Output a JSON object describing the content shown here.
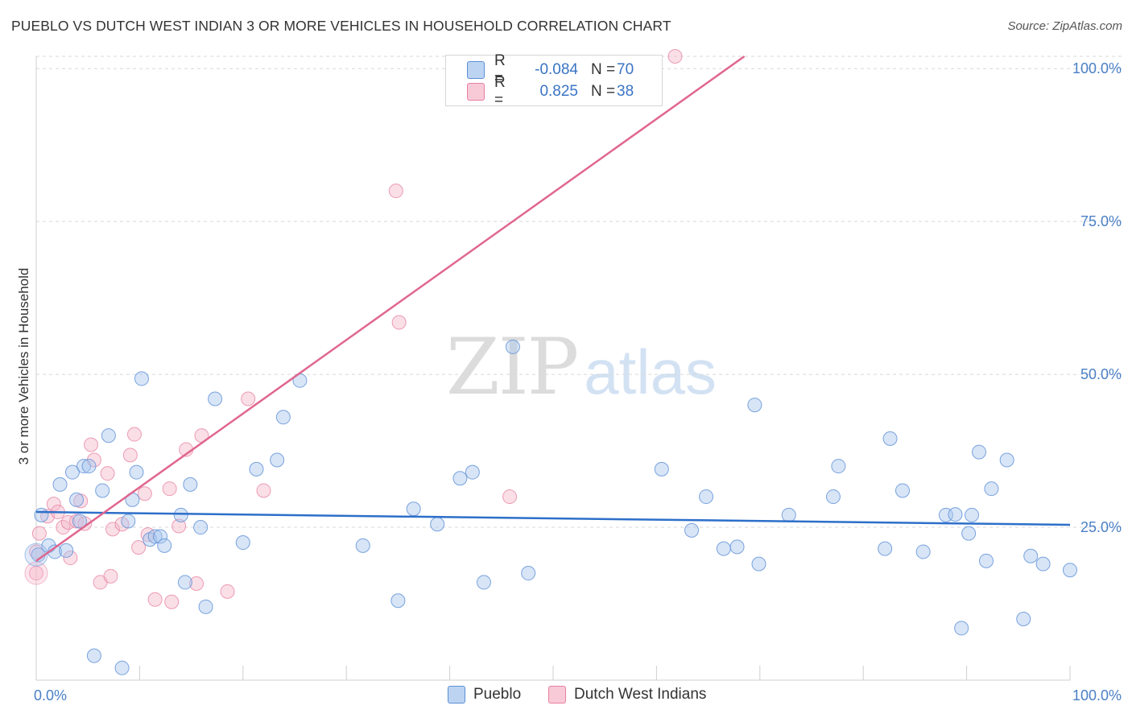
{
  "header": {
    "title": "PUEBLO VS DUTCH WEST INDIAN 3 OR MORE VEHICLES IN HOUSEHOLD CORRELATION CHART",
    "source": "Source: ZipAtlas.com"
  },
  "watermark": {
    "zip": "ZIP",
    "atlas": "atlas"
  },
  "legend": {
    "rows": [
      {
        "r_label": "R =",
        "r_value": "-0.084",
        "n_label": "N =",
        "n_value": "70"
      },
      {
        "r_label": "R =",
        "r_value": "0.825",
        "n_label": "N =",
        "n_value": "38"
      }
    ]
  },
  "bottom_legend": {
    "items": [
      "Pueblo",
      "Dutch West Indians"
    ]
  },
  "colors": {
    "pueblo_fill": "#a8c6ee",
    "pueblo_stroke": "#5b8fd6",
    "pueblo_line": "#2d6fc9",
    "dutch_fill": "#f5b8ca",
    "dutch_stroke": "#e77fa0",
    "dutch_line": "#e0668f",
    "tick_text": "#4a7fc6",
    "grid": "#d8d8d8"
  },
  "chart_data": {
    "type": "scatter",
    "title": "PUEBLO VS DUTCH WEST INDIAN 3 OR MORE VEHICLES IN HOUSEHOLD CORRELATION CHART",
    "xlabel": "",
    "ylabel": "3 or more Vehicles in Household",
    "xlim": [
      0,
      100
    ],
    "ylim": [
      0,
      102
    ],
    "x_tick_labels": [
      "0.0%",
      "100.0%"
    ],
    "y_ticks": [
      25,
      50,
      75,
      100
    ],
    "y_tick_labels": [
      "25.0%",
      "50.0%",
      "75.0%",
      "100.0%"
    ],
    "grid": true,
    "legend_position": "top-center",
    "series": [
      {
        "name": "Pueblo",
        "r": -0.084,
        "n": 70,
        "trend": {
          "x": [
            0,
            100
          ],
          "y": [
            27.5,
            25.4
          ]
        },
        "points": [
          [
            0.2,
            20.5
          ],
          [
            0.5,
            27
          ],
          [
            1.2,
            22
          ],
          [
            1.8,
            21
          ],
          [
            2.3,
            32
          ],
          [
            2.9,
            21.2
          ],
          [
            3.5,
            34
          ],
          [
            3.9,
            29.5
          ],
          [
            4.2,
            26
          ],
          [
            4.6,
            35
          ],
          [
            5.1,
            35
          ],
          [
            5.6,
            4
          ],
          [
            6.4,
            31
          ],
          [
            7,
            40
          ],
          [
            8.3,
            2
          ],
          [
            8.9,
            26
          ],
          [
            9.3,
            29.5
          ],
          [
            9.7,
            34
          ],
          [
            10.2,
            49.3
          ],
          [
            11,
            23
          ],
          [
            11.5,
            23.5
          ],
          [
            12,
            23.5
          ],
          [
            12.4,
            22
          ],
          [
            14,
            27
          ],
          [
            14.4,
            16
          ],
          [
            14.9,
            32
          ],
          [
            15.9,
            25
          ],
          [
            16.4,
            12
          ],
          [
            17.3,
            46
          ],
          [
            20,
            22.5
          ],
          [
            21.3,
            34.5
          ],
          [
            23.3,
            36
          ],
          [
            23.9,
            43
          ],
          [
            25.5,
            49
          ],
          [
            31.6,
            22
          ],
          [
            35,
            13
          ],
          [
            36.5,
            28
          ],
          [
            38.8,
            25.5
          ],
          [
            41,
            33
          ],
          [
            42.2,
            34
          ],
          [
            43.3,
            16
          ],
          [
            46.1,
            54.5
          ],
          [
            47.6,
            17.5
          ],
          [
            60.5,
            34.5
          ],
          [
            63.4,
            24.5
          ],
          [
            64.8,
            30
          ],
          [
            66.5,
            21.5
          ],
          [
            67.8,
            21.8
          ],
          [
            69.5,
            45
          ],
          [
            69.9,
            19
          ],
          [
            72.8,
            27
          ],
          [
            77.1,
            30
          ],
          [
            77.6,
            35
          ],
          [
            82.1,
            21.5
          ],
          [
            82.6,
            39.5
          ],
          [
            83.8,
            31
          ],
          [
            85.8,
            21
          ],
          [
            88,
            27
          ],
          [
            88.9,
            27.1
          ],
          [
            89.5,
            8.5
          ],
          [
            90.2,
            24
          ],
          [
            90.5,
            27
          ],
          [
            91.2,
            37.3
          ],
          [
            91.9,
            19.5
          ],
          [
            92.4,
            31.3
          ],
          [
            93.9,
            36
          ],
          [
            95.5,
            10
          ],
          [
            96.2,
            20.3
          ],
          [
            97.4,
            19
          ],
          [
            100,
            18
          ]
        ]
      },
      {
        "name": "Dutch West Indians",
        "r": 0.825,
        "n": 38,
        "trend": {
          "x": [
            0,
            68.5
          ],
          "y": [
            19.5,
            102
          ]
        },
        "points": [
          [
            0,
            17.5
          ],
          [
            0,
            21
          ],
          [
            0.3,
            24
          ],
          [
            1.1,
            26.8
          ],
          [
            1.7,
            28.8
          ],
          [
            2.1,
            27.5
          ],
          [
            2.6,
            25
          ],
          [
            3.1,
            25.8
          ],
          [
            3.3,
            20
          ],
          [
            3.9,
            26
          ],
          [
            4.3,
            29.3
          ],
          [
            4.7,
            25.6
          ],
          [
            5.3,
            38.5
          ],
          [
            5.6,
            36
          ],
          [
            6.2,
            16
          ],
          [
            6.9,
            33.8
          ],
          [
            7.2,
            17
          ],
          [
            7.4,
            24.7
          ],
          [
            8.3,
            25.5
          ],
          [
            9.1,
            36.8
          ],
          [
            9.5,
            40.2
          ],
          [
            9.9,
            21.7
          ],
          [
            10.5,
            30.5
          ],
          [
            10.8,
            23.8
          ],
          [
            11.5,
            13.2
          ],
          [
            12.9,
            31.3
          ],
          [
            13.1,
            12.8
          ],
          [
            13.8,
            25.2
          ],
          [
            14.5,
            37.7
          ],
          [
            15.5,
            15.8
          ],
          [
            16,
            40
          ],
          [
            18.5,
            14.5
          ],
          [
            20.5,
            46
          ],
          [
            22,
            31
          ],
          [
            34.8,
            80
          ],
          [
            35.1,
            58.5
          ],
          [
            45.8,
            30
          ],
          [
            61.8,
            102
          ]
        ]
      }
    ]
  }
}
